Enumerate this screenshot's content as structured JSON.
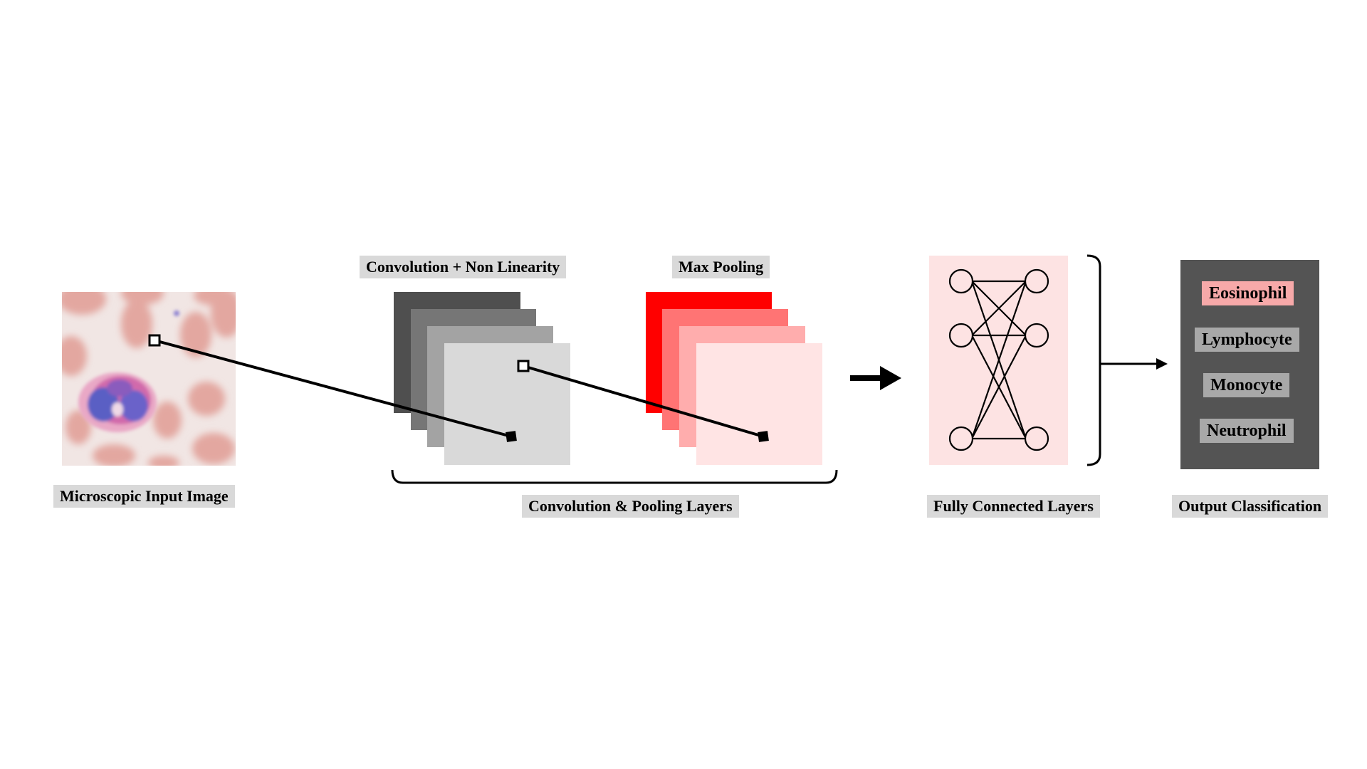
{
  "labels": {
    "input_image": "Microscopic Input Image",
    "convolution": "Convolution + Non Linearity",
    "max_pooling": "Max Pooling",
    "conv_pool_group": "Convolution & Pooling Layers",
    "fully_connected": "Fully Connected Layers",
    "output": "Output Classification"
  },
  "output_classes": [
    {
      "label": "Eosinophil",
      "selected": true
    },
    {
      "label": "Lymphocyte",
      "selected": false
    },
    {
      "label": "Monocyte",
      "selected": false
    },
    {
      "label": "Neutrophil",
      "selected": false
    }
  ],
  "colors": {
    "conv_layers": [
      "#4f4f4f",
      "#767676",
      "#a3a3a3",
      "#d9d9d9"
    ],
    "pool_layers": [
      "#ff0000",
      "#ff7474",
      "#ffadad",
      "#ffe4e4"
    ],
    "fc_panel": "#fde3e3",
    "output_panel": "#545454",
    "selected_class": "#f7a9a9",
    "class_box": "#a8a8a8",
    "label_bg": "#d9d9d9"
  }
}
